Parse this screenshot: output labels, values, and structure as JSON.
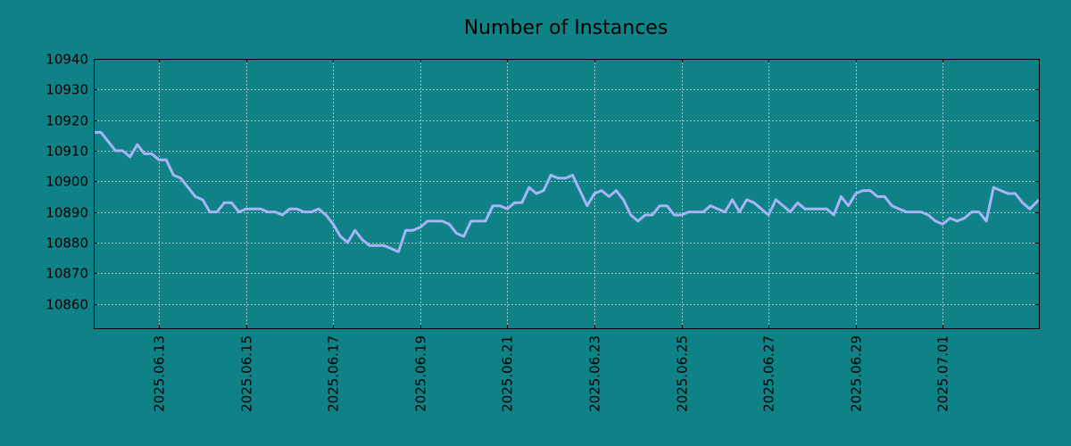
{
  "chart_data": {
    "type": "line",
    "title": "Number of Instances",
    "xlabel": "",
    "ylabel": "",
    "x_ticks": [
      "2025.06.13",
      "2025.06.15",
      "2025.06.17",
      "2025.06.19",
      "2025.06.21",
      "2025.06.23",
      "2025.06.25",
      "2025.06.27",
      "2025.06.29",
      "2025.07.01"
    ],
    "y_ticks": [
      10860,
      10870,
      10880,
      10890,
      10900,
      10910,
      10920,
      10930,
      10940
    ],
    "xlim": [
      "2025-06-11T12:00",
      "2025-07-03T05:00"
    ],
    "ylim": [
      10852,
      10940
    ],
    "grid": true,
    "series": [
      {
        "points": [
          [
            "2025-06-11T12:00",
            10916
          ],
          [
            "2025-06-11T16:00",
            10916
          ],
          [
            "2025-06-11T20:00",
            10913
          ],
          [
            "2025-06-12T00:00",
            10910
          ],
          [
            "2025-06-12T04:00",
            10910
          ],
          [
            "2025-06-12T08:00",
            10908
          ],
          [
            "2025-06-12T12:00",
            10912
          ],
          [
            "2025-06-12T16:00",
            10909
          ],
          [
            "2025-06-12T20:00",
            10909
          ],
          [
            "2025-06-13T00:00",
            10907
          ],
          [
            "2025-06-13T04:00",
            10907
          ],
          [
            "2025-06-13T08:00",
            10902
          ],
          [
            "2025-06-13T12:00",
            10901
          ],
          [
            "2025-06-13T16:00",
            10898
          ],
          [
            "2025-06-13T20:00",
            10895
          ],
          [
            "2025-06-14T00:00",
            10894
          ],
          [
            "2025-06-14T04:00",
            10890
          ],
          [
            "2025-06-14T08:00",
            10890
          ],
          [
            "2025-06-14T12:00",
            10893
          ],
          [
            "2025-06-14T16:00",
            10893
          ],
          [
            "2025-06-14T20:00",
            10890
          ],
          [
            "2025-06-15T00:00",
            10891
          ],
          [
            "2025-06-15T04:00",
            10891
          ],
          [
            "2025-06-15T08:00",
            10891
          ],
          [
            "2025-06-15T12:00",
            10890
          ],
          [
            "2025-06-15T16:00",
            10890
          ],
          [
            "2025-06-15T20:00",
            10889
          ],
          [
            "2025-06-16T00:00",
            10891
          ],
          [
            "2025-06-16T04:00",
            10891
          ],
          [
            "2025-06-16T08:00",
            10890
          ],
          [
            "2025-06-16T12:00",
            10890
          ],
          [
            "2025-06-16T16:00",
            10891
          ],
          [
            "2025-06-16T20:00",
            10889
          ],
          [
            "2025-06-17T00:00",
            10886
          ],
          [
            "2025-06-17T04:00",
            10882
          ],
          [
            "2025-06-17T08:00",
            10880
          ],
          [
            "2025-06-17T12:00",
            10884
          ],
          [
            "2025-06-17T16:00",
            10881
          ],
          [
            "2025-06-17T20:00",
            10879
          ],
          [
            "2025-06-18T00:00",
            10879
          ],
          [
            "2025-06-18T04:00",
            10879
          ],
          [
            "2025-06-18T08:00",
            10878
          ],
          [
            "2025-06-18T12:00",
            10877
          ],
          [
            "2025-06-18T16:00",
            10884
          ],
          [
            "2025-06-18T20:00",
            10884
          ],
          [
            "2025-06-19T00:00",
            10885
          ],
          [
            "2025-06-19T04:00",
            10887
          ],
          [
            "2025-06-19T08:00",
            10887
          ],
          [
            "2025-06-19T12:00",
            10887
          ],
          [
            "2025-06-19T16:00",
            10886
          ],
          [
            "2025-06-19T20:00",
            10883
          ],
          [
            "2025-06-20T00:00",
            10882
          ],
          [
            "2025-06-20T04:00",
            10887
          ],
          [
            "2025-06-20T08:00",
            10887
          ],
          [
            "2025-06-20T12:00",
            10887
          ],
          [
            "2025-06-20T16:00",
            10892
          ],
          [
            "2025-06-20T20:00",
            10892
          ],
          [
            "2025-06-21T00:00",
            10891
          ],
          [
            "2025-06-21T04:00",
            10893
          ],
          [
            "2025-06-21T08:00",
            10893
          ],
          [
            "2025-06-21T12:00",
            10898
          ],
          [
            "2025-06-21T16:00",
            10896
          ],
          [
            "2025-06-21T20:00",
            10897
          ],
          [
            "2025-06-22T00:00",
            10902
          ],
          [
            "2025-06-22T04:00",
            10901
          ],
          [
            "2025-06-22T08:00",
            10901
          ],
          [
            "2025-06-22T12:00",
            10902
          ],
          [
            "2025-06-22T16:00",
            10897
          ],
          [
            "2025-06-22T20:00",
            10892
          ],
          [
            "2025-06-23T00:00",
            10896
          ],
          [
            "2025-06-23T04:00",
            10897
          ],
          [
            "2025-06-23T08:00",
            10895
          ],
          [
            "2025-06-23T12:00",
            10897
          ],
          [
            "2025-06-23T16:00",
            10894
          ],
          [
            "2025-06-23T20:00",
            10889
          ],
          [
            "2025-06-24T00:00",
            10887
          ],
          [
            "2025-06-24T04:00",
            10889
          ],
          [
            "2025-06-24T08:00",
            10889
          ],
          [
            "2025-06-24T12:00",
            10892
          ],
          [
            "2025-06-24T16:00",
            10892
          ],
          [
            "2025-06-24T20:00",
            10889
          ],
          [
            "2025-06-25T00:00",
            10889
          ],
          [
            "2025-06-25T04:00",
            10890
          ],
          [
            "2025-06-25T08:00",
            10890
          ],
          [
            "2025-06-25T12:00",
            10890
          ],
          [
            "2025-06-25T16:00",
            10892
          ],
          [
            "2025-06-25T20:00",
            10891
          ],
          [
            "2025-06-26T00:00",
            10890
          ],
          [
            "2025-06-26T04:00",
            10894
          ],
          [
            "2025-06-26T08:00",
            10890
          ],
          [
            "2025-06-26T12:00",
            10894
          ],
          [
            "2025-06-26T16:00",
            10893
          ],
          [
            "2025-06-26T20:00",
            10891
          ],
          [
            "2025-06-27T00:00",
            10889
          ],
          [
            "2025-06-27T04:00",
            10894
          ],
          [
            "2025-06-27T08:00",
            10892
          ],
          [
            "2025-06-27T12:00",
            10890
          ],
          [
            "2025-06-27T16:00",
            10893
          ],
          [
            "2025-06-27T20:00",
            10891
          ],
          [
            "2025-06-28T00:00",
            10891
          ],
          [
            "2025-06-28T04:00",
            10891
          ],
          [
            "2025-06-28T08:00",
            10891
          ],
          [
            "2025-06-28T12:00",
            10889
          ],
          [
            "2025-06-28T16:00",
            10895
          ],
          [
            "2025-06-28T20:00",
            10892
          ],
          [
            "2025-06-29T00:00",
            10896
          ],
          [
            "2025-06-29T04:00",
            10897
          ],
          [
            "2025-06-29T08:00",
            10897
          ],
          [
            "2025-06-29T12:00",
            10895
          ],
          [
            "2025-06-29T16:00",
            10895
          ],
          [
            "2025-06-29T20:00",
            10892
          ],
          [
            "2025-06-30T00:00",
            10891
          ],
          [
            "2025-06-30T04:00",
            10890
          ],
          [
            "2025-06-30T08:00",
            10890
          ],
          [
            "2025-06-30T12:00",
            10890
          ],
          [
            "2025-06-30T16:00",
            10889
          ],
          [
            "2025-06-30T20:00",
            10887
          ],
          [
            "2025-07-01T00:00",
            10886
          ],
          [
            "2025-07-01T04:00",
            10888
          ],
          [
            "2025-07-01T08:00",
            10887
          ],
          [
            "2025-07-01T12:00",
            10888
          ],
          [
            "2025-07-01T16:00",
            10890
          ],
          [
            "2025-07-01T20:00",
            10890
          ],
          [
            "2025-07-02T00:00",
            10887
          ],
          [
            "2025-07-02T04:00",
            10898
          ],
          [
            "2025-07-02T08:00",
            10897
          ],
          [
            "2025-07-02T12:00",
            10896
          ],
          [
            "2025-07-02T16:00",
            10896
          ],
          [
            "2025-07-02T20:00",
            10893
          ],
          [
            "2025-07-03T00:00",
            10891
          ],
          [
            "2025-07-03T05:00",
            10894
          ]
        ]
      }
    ]
  },
  "colors": {
    "background": "#0f8287",
    "line": "#a8b4f6",
    "grid": "#c8d8d8",
    "axis": "#000000",
    "text": "#000000"
  }
}
